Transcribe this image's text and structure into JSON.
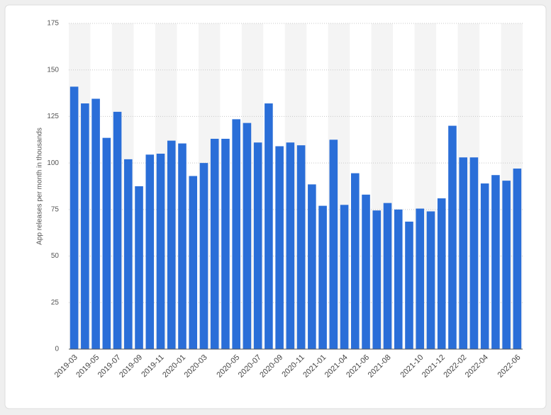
{
  "chart_data": {
    "type": "bar",
    "y_label": "App releases per month in thousands",
    "categories": [
      "2019-03",
      null,
      "2019-05",
      null,
      "2019-07",
      null,
      "2019-09",
      null,
      "2019-11",
      null,
      "2020-01",
      null,
      "2020-03",
      null,
      null,
      "2020-05",
      null,
      "2020-07",
      null,
      "2020-09",
      null,
      "2020-11",
      null,
      "2021-01",
      null,
      "2021-04",
      null,
      "2021-06",
      null,
      "2021-08",
      null,
      null,
      "2021-10",
      null,
      "2021-12",
      null,
      "2022-02",
      null,
      "2022-04",
      null,
      null,
      "2022-06"
    ],
    "values": [
      141,
      132,
      134.5,
      113.5,
      127.5,
      102,
      87.5,
      104.5,
      105,
      112,
      110.5,
      93,
      100,
      113,
      113,
      123.5,
      121.5,
      111,
      132,
      109,
      111,
      109.5,
      88.5,
      77,
      112.5,
      77.5,
      94.5,
      83,
      74.5,
      78.5,
      75,
      68.5,
      75.5,
      74,
      81,
      120,
      103,
      103,
      89,
      93.5,
      90.5,
      97
    ],
    "color": "#2a6ed8",
    "ylim": [
      0,
      175
    ],
    "yticks": [
      0,
      25,
      50,
      75,
      100,
      125,
      150,
      175
    ],
    "grid": true
  }
}
